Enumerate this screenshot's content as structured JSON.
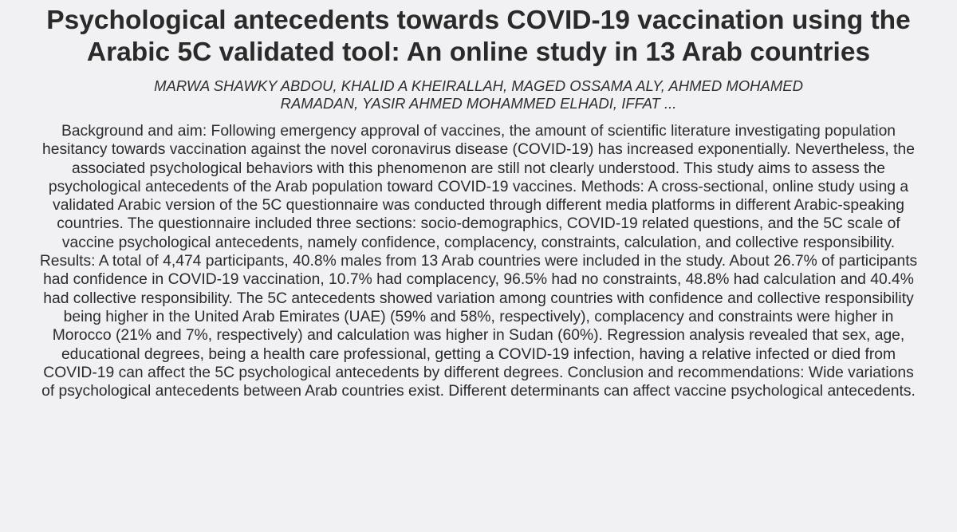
{
  "paper": {
    "title": "Psychological antecedents towards COVID-19 vaccination using the Arabic 5C validated tool: An online study in 13 Arab countries",
    "authors": "MARWA SHAWKY ABDOU, KHALID A KHEIRALLAH, MAGED OSSAMA ALY, AHMED MOHAMED RAMADAN, YASIR AHMED MOHAMMED ELHADI, IFFAT ...",
    "abstract": "Background and aim: Following emergency approval of vaccines, the amount of scientific literature investigating population hesitancy towards vaccination against the novel coronavirus disease (COVID-19) has increased exponentially. Nevertheless, the associated psychological behaviors with this phenomenon are still not clearly understood. This study aims to assess the psychological antecedents of the Arab population toward COVID-19 vaccines. Methods: A cross-sectional, online study using a validated Arabic version of the 5C questionnaire was conducted through different media platforms in different Arabic-speaking countries. The questionnaire included three sections: socio-demographics, COVID-19 related questions, and the 5C scale of vaccine psychological antecedents, namely confidence, complacency, constraints, calculation, and collective responsibility. Results: A total of 4,474 participants, 40.8% males from 13 Arab countries were included in the study. About 26.7% of participants had confidence in COVID-19 vaccination, 10.7% had complacency, 96.5% had no constraints, 48.8% had calculation and 40.4% had collective responsibility. The 5C antecedents showed variation among countries with confidence and collective responsibility being higher in the United Arab Emirates (UAE) (59% and 58%, respectively), complacency and constraints were higher in Morocco (21% and 7%, respectively) and calculation was higher in Sudan (60%). Regression analysis revealed that sex, age, educational degrees, being a health care professional, getting a COVID-19 infection, having a relative infected or died from COVID-19 can affect the 5C psychological antecedents by different degrees. Conclusion and recommendations: Wide variations of psychological antecedents between Arab countries exist. Different determinants can affect vaccine psychological antecedents."
  },
  "colors": {
    "background": "#f1f1f3",
    "text": "#2b2b2b"
  }
}
